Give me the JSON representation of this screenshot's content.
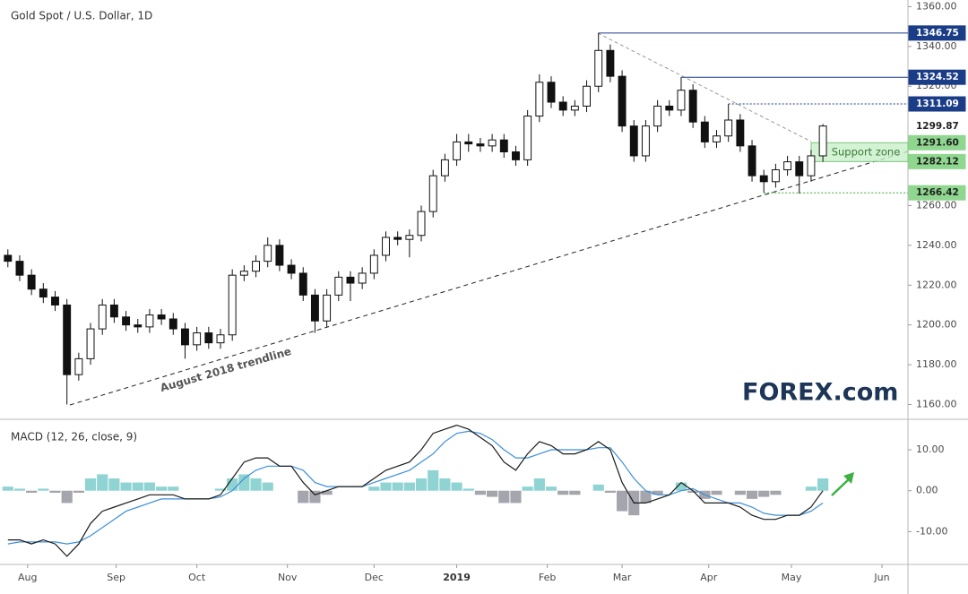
{
  "chart_data": [
    {
      "type": "candlestick",
      "title": "Gold Spot / U.S. Dollar, 1D",
      "x": [
        0,
        3,
        6,
        9,
        12,
        15,
        18,
        21,
        24,
        27,
        30,
        33,
        36,
        39,
        42,
        45,
        48,
        51,
        54,
        57,
        60,
        63,
        66,
        69,
        72,
        75,
        78,
        81,
        84,
        87,
        90,
        93,
        96,
        99,
        102,
        105,
        108,
        111,
        114,
        117,
        120,
        123,
        126,
        129,
        132,
        135,
        138,
        141,
        144,
        147,
        150,
        153,
        156,
        159,
        162,
        165,
        168,
        171,
        174,
        177,
        180,
        183,
        186,
        189,
        192,
        195,
        198,
        201,
        204,
        207
      ],
      "open": [
        1235,
        1232,
        1225,
        1218,
        1214,
        1210,
        1175,
        1183,
        1198,
        1210,
        1204,
        1200,
        1199,
        1205,
        1203,
        1198,
        1190,
        1196,
        1191,
        1195,
        1225,
        1227,
        1232,
        1240,
        1230,
        1226,
        1215,
        1202,
        1215,
        1224,
        1221,
        1226,
        1235,
        1244,
        1243,
        1245,
        1257,
        1275,
        1283,
        1292,
        1291,
        1290,
        1293,
        1287,
        1283,
        1305,
        1322,
        1312,
        1308,
        1310,
        1320,
        1338,
        1325,
        1300,
        1285,
        1300,
        1310,
        1308,
        1318,
        1302,
        1292,
        1295,
        1303,
        1290,
        1275,
        1272,
        1278,
        1282,
        1275,
        1285
      ],
      "high": [
        1238,
        1235,
        1228,
        1221,
        1217,
        1213,
        1186,
        1201,
        1213,
        1213,
        1207,
        1203,
        1208,
        1208,
        1206,
        1201,
        1199,
        1199,
        1198,
        1228,
        1230,
        1235,
        1244,
        1243,
        1233,
        1229,
        1218,
        1218,
        1227,
        1227,
        1229,
        1238,
        1247,
        1247,
        1248,
        1260,
        1278,
        1286,
        1296,
        1296,
        1294,
        1296,
        1296,
        1290,
        1308,
        1326,
        1325,
        1315,
        1313,
        1323,
        1346.75,
        1341,
        1328,
        1303,
        1303,
        1313,
        1313,
        1324.52,
        1321,
        1305,
        1298,
        1311.09,
        1306,
        1293,
        1278,
        1281,
        1285,
        1285,
        1288,
        1301
      ],
      "low": [
        1229,
        1222,
        1215,
        1211,
        1207,
        1160,
        1172,
        1180,
        1195,
        1201,
        1197,
        1196,
        1196,
        1200,
        1195,
        1183,
        1187,
        1188,
        1188,
        1192,
        1222,
        1224,
        1229,
        1227,
        1223,
        1212,
        1196,
        1199,
        1212,
        1212,
        1218,
        1223,
        1232,
        1240,
        1234,
        1242,
        1254,
        1272,
        1280,
        1287,
        1287,
        1287,
        1284,
        1280,
        1280,
        1302,
        1309,
        1305,
        1305,
        1307,
        1317,
        1322,
        1297,
        1282,
        1282,
        1297,
        1305,
        1305,
        1299,
        1289,
        1289,
        1292,
        1287,
        1272,
        1266.42,
        1269,
        1275,
        1266,
        1272,
        1282
      ],
      "close": [
        1232,
        1225,
        1218,
        1214,
        1210,
        1175,
        1183,
        1198,
        1210,
        1204,
        1200,
        1199,
        1205,
        1203,
        1198,
        1190,
        1196,
        1191,
        1195,
        1225,
        1227,
        1232,
        1240,
        1230,
        1226,
        1215,
        1202,
        1215,
        1224,
        1221,
        1226,
        1235,
        1244,
        1243,
        1245,
        1257,
        1275,
        1283,
        1292,
        1291,
        1290,
        1293,
        1287,
        1283,
        1305,
        1322,
        1312,
        1308,
        1310,
        1320,
        1338,
        1325,
        1300,
        1285,
        1300,
        1310,
        1308,
        1318,
        1302,
        1292,
        1295,
        1303,
        1290,
        1275,
        1272,
        1278,
        1282,
        1275,
        1285,
        1300
      ],
      "up_color": "#ffffff",
      "down_color": "#111111",
      "xlim": [
        -2,
        228.6
      ],
      "xticks": [
        {
          "value": 5,
          "label": "Aug"
        },
        {
          "value": 27.5,
          "label": "Sep"
        },
        {
          "value": 48,
          "label": "Oct"
        },
        {
          "value": 71,
          "label": "Nov"
        },
        {
          "value": 93,
          "label": "Dec"
        },
        {
          "value": 114,
          "label": "2019"
        },
        {
          "value": 137,
          "label": "Feb"
        },
        {
          "value": 156,
          "label": "Mar"
        },
        {
          "value": 178,
          "label": "Apr"
        },
        {
          "value": 199,
          "label": "May"
        },
        {
          "value": 222,
          "label": "Jun"
        }
      ],
      "ylim": [
        1153,
        1362
      ],
      "yticks": [
        {
          "value": 1160,
          "label": "1160.00"
        },
        {
          "value": 1180,
          "label": "1180.00"
        },
        {
          "value": 1200,
          "label": "1200.00"
        },
        {
          "value": 1220,
          "label": "1220.00"
        },
        {
          "value": 1240,
          "label": "1240.00"
        },
        {
          "value": 1260,
          "label": "1260.00"
        },
        {
          "value": 1280,
          "label": "1280.00"
        },
        {
          "value": 1300,
          "label": "1300.00"
        },
        {
          "value": 1320,
          "label": "1320.00"
        },
        {
          "value": 1340,
          "label": "1340.00"
        },
        {
          "value": 1360,
          "label": "1360.00"
        }
      ],
      "levels": [
        {
          "value": 1346.75,
          "color": "#1b3c86",
          "style": "solid",
          "anchor": "high"
        },
        {
          "value": 1324.52,
          "color": "#1b3c86",
          "style": "solid",
          "anchor": "high"
        },
        {
          "value": 1311.09,
          "color": "#1b3c86",
          "style": "dotted",
          "anchor": "high"
        },
        {
          "value": 1299.87,
          "color": "#ffffff",
          "style": "none"
        },
        {
          "value": 1291.6,
          "label": "1291.60",
          "color": "#8fd68f",
          "style": "zone"
        },
        {
          "value": 1282.12,
          "color": "#8fd68f",
          "style": "zone"
        },
        {
          "value": 1266.42,
          "color": "#8fd68f",
          "style": "dotted",
          "anchor": "low"
        }
      ],
      "support_zone": "Support zone",
      "trendline": "August 2018 trendline",
      "logo": "FOREX.com"
    },
    {
      "type": "macd",
      "title": "MACD (12, 26, close, 9)",
      "x": [
        0,
        3,
        6,
        9,
        12,
        15,
        18,
        21,
        24,
        27,
        30,
        33,
        36,
        39,
        42,
        45,
        48,
        51,
        54,
        57,
        60,
        63,
        66,
        69,
        72,
        75,
        78,
        81,
        84,
        87,
        90,
        93,
        96,
        99,
        102,
        105,
        108,
        111,
        114,
        117,
        120,
        123,
        126,
        129,
        132,
        135,
        138,
        141,
        144,
        147,
        150,
        153,
        156,
        159,
        162,
        165,
        168,
        171,
        174,
        177,
        180,
        183,
        186,
        189,
        192,
        195,
        198,
        201,
        204,
        207
      ],
      "xlim": [
        -2,
        228.6
      ],
      "ylim": [
        -18,
        17
      ],
      "yticks": [
        {
          "value": -10,
          "label": "-10.00"
        },
        {
          "value": 0,
          "label": "0.00"
        },
        {
          "value": 10,
          "label": "10.00"
        }
      ],
      "histogram": {
        "positive_color": "#8fd3d3",
        "negative_color": "#a5a5ad",
        "values": [
          1,
          0.5,
          -0.5,
          0.5,
          -0.5,
          -3,
          -0.5,
          3,
          4,
          3,
          2,
          2,
          2,
          1,
          1,
          0,
          0,
          0,
          0.5,
          3,
          4,
          3,
          2,
          0,
          0,
          -3,
          -3,
          -1,
          0,
          0,
          0,
          1,
          2,
          2,
          2,
          3,
          5,
          3,
          2,
          0.5,
          -1,
          -1.5,
          -3,
          -3,
          1,
          3,
          1,
          -1,
          -1,
          0,
          1.5,
          -0.5,
          -5,
          -6,
          -3,
          -1,
          0,
          2,
          -0.5,
          -2,
          -1,
          0,
          -1,
          -2,
          -1.5,
          -1,
          0,
          0,
          1,
          3
        ]
      },
      "series": [
        {
          "color": "#1a1a1a",
          "values": [
            -12,
            -12,
            -13,
            -12,
            -13,
            -16,
            -13,
            -8,
            -5,
            -4,
            -3,
            -2,
            -1,
            -1,
            -1,
            -2,
            -2,
            -2,
            -1,
            3,
            7,
            8,
            8,
            6,
            6,
            2,
            -1,
            0,
            1,
            1,
            1,
            3,
            5,
            6,
            7,
            10,
            14,
            15,
            16,
            15,
            13,
            11,
            7,
            5,
            9,
            12,
            11,
            9,
            9,
            10,
            12,
            10,
            2,
            -3,
            -3,
            -2,
            -1,
            2,
            0,
            -3,
            -3,
            -3,
            -4,
            -6,
            -7,
            -7,
            -6,
            -6,
            -4,
            0
          ]
        },
        {
          "color": "#3d8fd9",
          "values": [
            -13,
            -12.5,
            -12.5,
            -12.5,
            -12.5,
            -13,
            -12.5,
            -11,
            -9,
            -7,
            -5,
            -4,
            -3,
            -2,
            -2,
            -2,
            -2,
            -2,
            -1.5,
            0,
            3,
            5,
            6,
            6,
            6,
            5,
            2,
            1,
            1,
            1,
            1,
            2,
            3,
            4,
            5,
            7,
            9,
            12,
            14,
            14.5,
            14,
            12.5,
            10,
            8,
            8,
            9,
            10,
            10,
            10,
            10,
            10.5,
            10.5,
            7,
            3,
            0,
            -1,
            -1,
            0,
            0.5,
            -1,
            -2,
            -3,
            -3,
            -4,
            -5.5,
            -6,
            -6,
            -6,
            -5,
            -3
          ]
        }
      ]
    }
  ]
}
